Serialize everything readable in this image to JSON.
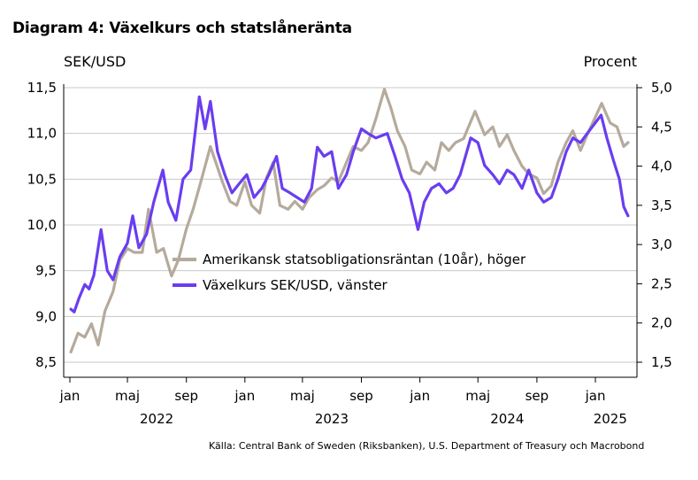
{
  "title": "Diagram 4: Växelkurs och statslåneränta",
  "source": "Källa: Central Bank of Sweden (Riksbanken), U.S. Department of Treasury och Macrobond",
  "chart_data": {
    "type": "line",
    "left_axis_label": "SEK/USD",
    "right_axis_label": "Procent",
    "x_range": [
      "2022-01-01",
      "2025-03-01"
    ],
    "x_ticks": [
      {
        "date": "2022-01-01",
        "label": "jan"
      },
      {
        "date": "2022-05-01",
        "label": "maj"
      },
      {
        "date": "2022-09-01",
        "label": "sep"
      },
      {
        "date": "2023-01-01",
        "label": "jan"
      },
      {
        "date": "2023-05-01",
        "label": "maj"
      },
      {
        "date": "2023-09-01",
        "label": "sep"
      },
      {
        "date": "2024-01-01",
        "label": "jan"
      },
      {
        "date": "2024-05-01",
        "label": "maj"
      },
      {
        "date": "2024-09-01",
        "label": "sep"
      },
      {
        "date": "2025-01-01",
        "label": "jan"
      }
    ],
    "year_labels": [
      {
        "date": "2022-07-01",
        "label": "2022"
      },
      {
        "date": "2023-07-01",
        "label": "2023"
      },
      {
        "date": "2024-07-01",
        "label": "2024"
      },
      {
        "date": "2025-02-01",
        "label": "2025"
      }
    ],
    "ylim_left": [
      8.5,
      11.5
    ],
    "yticks_left": [
      "8,5",
      "9,0",
      "9,5",
      "10,0",
      "10,5",
      "11,0",
      "11,5"
    ],
    "ylim_right": [
      1.5,
      5.0
    ],
    "yticks_right": [
      "1,5",
      "2,0",
      "2,5",
      "3,0",
      "3,5",
      "4,0",
      "4,5",
      "5,0"
    ],
    "grid": true,
    "legend_position": "center",
    "series": [
      {
        "name": "Amerikansk statsobligationsräntan (10år), höger",
        "axis": "right",
        "color": "#b5aa9c",
        "points": [
          [
            "2022-01-03",
            1.63
          ],
          [
            "2022-01-18",
            1.87
          ],
          [
            "2022-02-01",
            1.82
          ],
          [
            "2022-02-15",
            1.99
          ],
          [
            "2022-03-01",
            1.72
          ],
          [
            "2022-03-15",
            2.15
          ],
          [
            "2022-04-01",
            2.4
          ],
          [
            "2022-04-15",
            2.8
          ],
          [
            "2022-05-01",
            2.95
          ],
          [
            "2022-05-15",
            2.9
          ],
          [
            "2022-06-01",
            2.9
          ],
          [
            "2022-06-14",
            3.45
          ],
          [
            "2022-07-01",
            2.9
          ],
          [
            "2022-07-15",
            2.95
          ],
          [
            "2022-08-01",
            2.6
          ],
          [
            "2022-08-15",
            2.8
          ],
          [
            "2022-09-01",
            3.2
          ],
          [
            "2022-09-15",
            3.45
          ],
          [
            "2022-10-01",
            3.8
          ],
          [
            "2022-10-21",
            4.25
          ],
          [
            "2022-11-15",
            3.8
          ],
          [
            "2022-12-01",
            3.55
          ],
          [
            "2022-12-15",
            3.5
          ],
          [
            "2023-01-01",
            3.8
          ],
          [
            "2023-01-15",
            3.5
          ],
          [
            "2023-02-01",
            3.4
          ],
          [
            "2023-02-15",
            3.85
          ],
          [
            "2023-03-01",
            4.05
          ],
          [
            "2023-03-15",
            3.5
          ],
          [
            "2023-04-01",
            3.45
          ],
          [
            "2023-04-15",
            3.55
          ],
          [
            "2023-05-01",
            3.45
          ],
          [
            "2023-05-15",
            3.6
          ],
          [
            "2023-06-01",
            3.7
          ],
          [
            "2023-06-15",
            3.75
          ],
          [
            "2023-07-01",
            3.85
          ],
          [
            "2023-07-15",
            3.8
          ],
          [
            "2023-08-01",
            4.05
          ],
          [
            "2023-08-15",
            4.25
          ],
          [
            "2023-09-01",
            4.2
          ],
          [
            "2023-09-15",
            4.3
          ],
          [
            "2023-10-01",
            4.6
          ],
          [
            "2023-10-19",
            4.98
          ],
          [
            "2023-11-01",
            4.75
          ],
          [
            "2023-11-15",
            4.45
          ],
          [
            "2023-12-01",
            4.25
          ],
          [
            "2023-12-15",
            3.95
          ],
          [
            "2024-01-01",
            3.9
          ],
          [
            "2024-01-15",
            4.05
          ],
          [
            "2024-02-01",
            3.95
          ],
          [
            "2024-02-15",
            4.3
          ],
          [
            "2024-03-01",
            4.2
          ],
          [
            "2024-03-15",
            4.3
          ],
          [
            "2024-04-01",
            4.35
          ],
          [
            "2024-04-25",
            4.7
          ],
          [
            "2024-05-15",
            4.4
          ],
          [
            "2024-06-01",
            4.5
          ],
          [
            "2024-06-15",
            4.25
          ],
          [
            "2024-07-01",
            4.4
          ],
          [
            "2024-07-15",
            4.2
          ],
          [
            "2024-08-01",
            4.0
          ],
          [
            "2024-08-15",
            3.9
          ],
          [
            "2024-09-01",
            3.85
          ],
          [
            "2024-09-15",
            3.65
          ],
          [
            "2024-10-01",
            3.75
          ],
          [
            "2024-10-15",
            4.05
          ],
          [
            "2024-11-01",
            4.3
          ],
          [
            "2024-11-15",
            4.45
          ],
          [
            "2024-12-01",
            4.2
          ],
          [
            "2024-12-15",
            4.4
          ],
          [
            "2025-01-14",
            4.8
          ],
          [
            "2025-02-01",
            4.55
          ],
          [
            "2025-02-15",
            4.5
          ],
          [
            "2025-03-01",
            4.25
          ],
          [
            "2025-03-10",
            4.3
          ]
        ]
      },
      {
        "name": "Växelkurs SEK/USD, vänster",
        "axis": "left",
        "color": "#6a3df0",
        "points": [
          [
            "2022-01-03",
            9.08
          ],
          [
            "2022-01-10",
            9.05
          ],
          [
            "2022-01-20",
            9.2
          ],
          [
            "2022-02-01",
            9.35
          ],
          [
            "2022-02-10",
            9.3
          ],
          [
            "2022-02-20",
            9.45
          ],
          [
            "2022-03-07",
            9.95
          ],
          [
            "2022-03-20",
            9.5
          ],
          [
            "2022-04-01",
            9.4
          ],
          [
            "2022-04-15",
            9.65
          ],
          [
            "2022-05-01",
            9.8
          ],
          [
            "2022-05-12",
            10.1
          ],
          [
            "2022-05-25",
            9.75
          ],
          [
            "2022-06-10",
            9.9
          ],
          [
            "2022-06-25",
            10.25
          ],
          [
            "2022-07-14",
            10.6
          ],
          [
            "2022-07-25",
            10.25
          ],
          [
            "2022-08-10",
            10.05
          ],
          [
            "2022-08-25",
            10.5
          ],
          [
            "2022-09-10",
            10.6
          ],
          [
            "2022-09-28",
            11.4
          ],
          [
            "2022-10-10",
            11.05
          ],
          [
            "2022-10-21",
            11.35
          ],
          [
            "2022-11-05",
            10.8
          ],
          [
            "2022-11-20",
            10.55
          ],
          [
            "2022-12-05",
            10.35
          ],
          [
            "2022-12-20",
            10.45
          ],
          [
            "2023-01-05",
            10.55
          ],
          [
            "2023-01-20",
            10.3
          ],
          [
            "2023-02-05",
            10.4
          ],
          [
            "2023-02-20",
            10.55
          ],
          [
            "2023-03-08",
            10.75
          ],
          [
            "2023-03-20",
            10.4
          ],
          [
            "2023-04-05",
            10.35
          ],
          [
            "2023-04-20",
            10.3
          ],
          [
            "2023-05-05",
            10.25
          ],
          [
            "2023-05-20",
            10.4
          ],
          [
            "2023-06-01",
            10.85
          ],
          [
            "2023-06-15",
            10.75
          ],
          [
            "2023-07-01",
            10.8
          ],
          [
            "2023-07-15",
            10.4
          ],
          [
            "2023-08-01",
            10.55
          ],
          [
            "2023-08-15",
            10.8
          ],
          [
            "2023-09-01",
            11.05
          ],
          [
            "2023-09-15",
            11.0
          ],
          [
            "2023-10-01",
            10.95
          ],
          [
            "2023-10-25",
            11.0
          ],
          [
            "2023-11-10",
            10.75
          ],
          [
            "2023-11-25",
            10.5
          ],
          [
            "2023-12-10",
            10.35
          ],
          [
            "2023-12-28",
            9.95
          ],
          [
            "2024-01-10",
            10.25
          ],
          [
            "2024-01-25",
            10.4
          ],
          [
            "2024-02-10",
            10.45
          ],
          [
            "2024-02-25",
            10.35
          ],
          [
            "2024-03-10",
            10.4
          ],
          [
            "2024-03-25",
            10.55
          ],
          [
            "2024-04-16",
            10.95
          ],
          [
            "2024-05-01",
            10.9
          ],
          [
            "2024-05-15",
            10.65
          ],
          [
            "2024-06-01",
            10.55
          ],
          [
            "2024-06-15",
            10.45
          ],
          [
            "2024-07-01",
            10.6
          ],
          [
            "2024-07-15",
            10.55
          ],
          [
            "2024-08-01",
            10.4
          ],
          [
            "2024-08-15",
            10.6
          ],
          [
            "2024-09-01",
            10.35
          ],
          [
            "2024-09-15",
            10.25
          ],
          [
            "2024-10-01",
            10.3
          ],
          [
            "2024-10-15",
            10.5
          ],
          [
            "2024-11-01",
            10.8
          ],
          [
            "2024-11-15",
            10.95
          ],
          [
            "2024-12-01",
            10.9
          ],
          [
            "2024-12-15",
            11.0
          ],
          [
            "2025-01-13",
            11.2
          ],
          [
            "2025-01-25",
            10.95
          ],
          [
            "2025-02-08",
            10.7
          ],
          [
            "2025-02-20",
            10.5
          ],
          [
            "2025-03-01",
            10.2
          ],
          [
            "2025-03-10",
            10.1
          ]
        ]
      }
    ]
  }
}
